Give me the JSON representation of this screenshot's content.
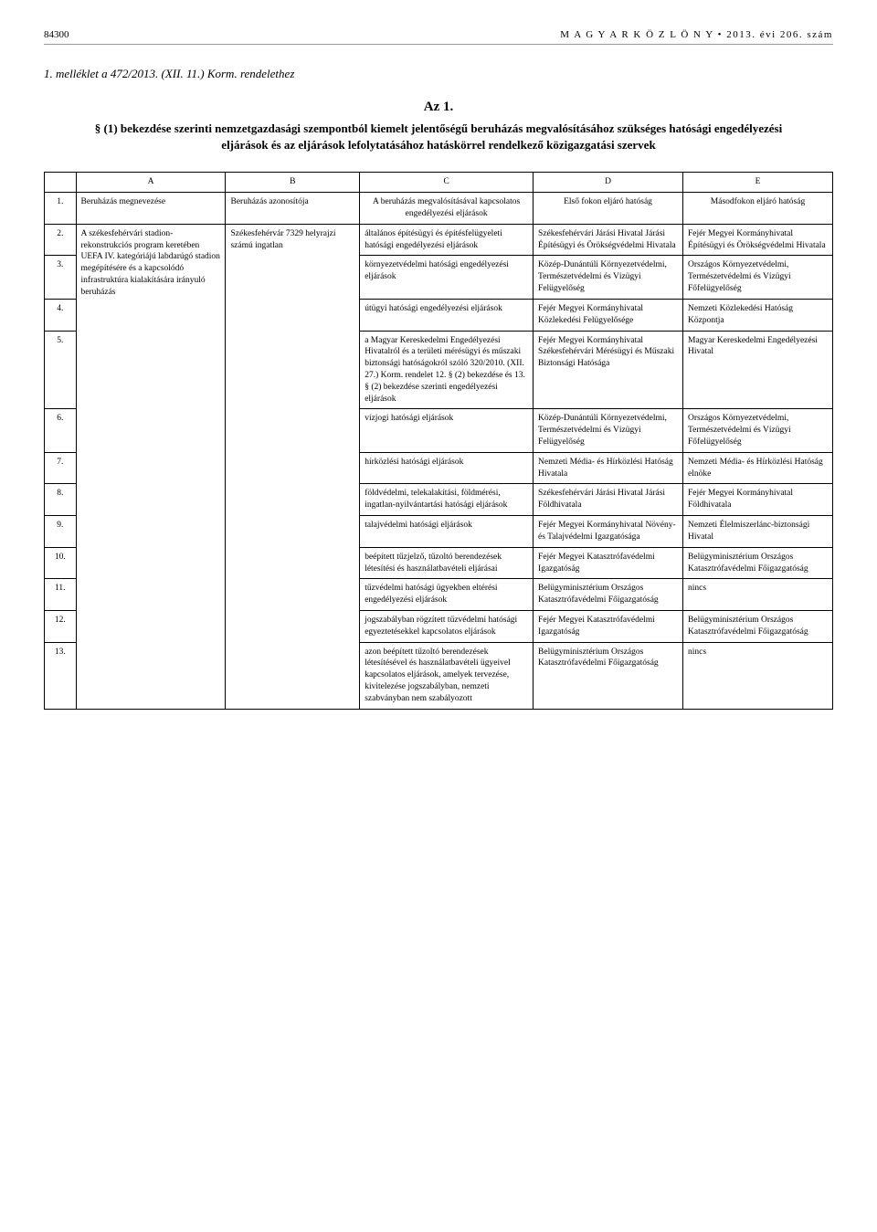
{
  "header": {
    "page_no": "84300",
    "journal": "M A G Y A R   K Ö Z L Ö N Y  •  2013. évi 206. szám"
  },
  "attachment": "1. melléklet a 472/2013. (XII. 11.) Korm. rendelethez",
  "title": "Az 1.",
  "subtitle": "§ (1) bekezdése szerinti nemzetgazdasági szempontból kiemelt jelentőségű beruházás megvalósításához szükséges hatósági engedélyezési eljárások és az eljárások lefolytatásához hatáskörrel rendelkező közigazgatási szervek",
  "columns": [
    "",
    "A",
    "B",
    "C",
    "D",
    "E"
  ],
  "header_row": {
    "num": "1.",
    "a": "Beruházás megnevezése",
    "b": "Beruházás azonosítója",
    "c": "A beruházás megvalósításával kapcsolatos engedélyezési eljárások",
    "d": "Első fokon eljáró hatóság",
    "e": "Másodfokon eljáró hatóság"
  },
  "investment_name": "A székesfehérvári stadion-rekonstrukciós program keretében UEFA IV. kategóriájú labdarúgó stadion megépítésére és a kapcsolódó infrastruktúra kialakítására irányuló beruházás",
  "investment_id": "Székesfehérvár 7329 helyrajzi számú ingatlan",
  "rows": [
    {
      "num": "2.",
      "c": "általános építésügyi és építésfelügyeleti hatósági engedélyezési eljárások",
      "d": "Székesfehérvári Járási Hivatal Járási Építésügyi és Örökségvédelmi Hivatala",
      "e": "Fejér Megyei Kormányhivatal Építésügyi és Örökségvédelmi Hivatala"
    },
    {
      "num": "3.",
      "c": "környezetvédelmi hatósági engedélyezési eljárások",
      "d": "Közép-Dunántúli Környezetvédelmi, Természetvédelmi és Vízügyi Felügyelőség",
      "e": "Országos Környezetvédelmi, Természetvédelmi és Vízügyi Főfelügyelőség"
    },
    {
      "num": "4.",
      "c": "útügyi hatósági engedélyezési eljárások",
      "d": "Fejér Megyei Kormányhivatal Közlekedési Felügyelősége",
      "e": "Nemzeti Közlekedési Hatóság Központja"
    },
    {
      "num": "5.",
      "c": "a Magyar Kereskedelmi Engedélyezési Hivatalról és a területi mérésügyi és műszaki biztonsági hatóságokról szóló 320/2010. (XII. 27.) Korm. rendelet 12. § (2) bekezdése és 13. § (2) bekezdése szerinti engedélyezési eljárások",
      "d": "Fejér Megyei Kormányhivatal Székesfehérvári Mérésügyi és Műszaki Biztonsági Hatósága",
      "e": "Magyar Kereskedelmi Engedélyezési Hivatal"
    },
    {
      "num": "6.",
      "c": "vízjogi hatósági eljárások",
      "d": "Közép-Dunántúli Környezetvédelmi, Természetvédelmi és Vízügyi Felügyelőség",
      "e": "Országos Környezetvédelmi, Természetvédelmi és Vízügyi Főfelügyelőség"
    },
    {
      "num": "7.",
      "c": "hírközlési hatósági eljárások",
      "d": "Nemzeti Média- és Hírközlési Hatóság Hivatala",
      "e": "Nemzeti Média- és Hírközlési Hatóság elnöke"
    },
    {
      "num": "8.",
      "c": "földvédelmi, telekalakítási, földmérési, ingatlan-nyilvántartási hatósági eljárások",
      "d": "Székesfehérvári Járási Hivatal Járási Földhivatala",
      "e": "Fejér Megyei Kormányhivatal Földhivatala"
    },
    {
      "num": "9.",
      "c": "talajvédelmi hatósági eljárások",
      "d": "Fejér Megyei Kormányhivatal Növény- és Talajvédelmi Igazgatósága",
      "e": "Nemzeti Élelmiszerlánc-biztonsági Hivatal"
    },
    {
      "num": "10.",
      "c": "beépített tűzjelző, tűzoltó berendezések létesítési és használatbavételi eljárásai",
      "d": "Fejér Megyei Katasztrófavédelmi Igazgatóság",
      "e": "Belügyminisztérium Országos Katasztrófavédelmi Főigazgatóság"
    },
    {
      "num": "11.",
      "c": "tűzvédelmi hatósági ügyekben eltérési engedélyezési eljárások",
      "d": "Belügyminisztérium Országos Katasztrófavédelmi Főigazgatóság",
      "e": "nincs"
    },
    {
      "num": "12.",
      "c": "jogszabályban rögzített tűzvédelmi hatósági egyeztetésekkel kapcsolatos eljárások",
      "d": "Fejér Megyei Katasztrófavédelmi Igazgatóság",
      "e": "Belügyminisztérium Országos Katasztrófavédelmi Főigazgatóság"
    },
    {
      "num": "13.",
      "c": "azon beépített tűzoltó berendezések létesítésével és használatbavételi ügyeivel kapcsolatos eljárások, amelyek tervezése, kivitelezése jogszabályban, nemzeti szabványban nem szabályozott",
      "d": "Belügyminisztérium Országos Katasztrófavédelmi Főigazgatóság",
      "e": "nincs"
    }
  ]
}
